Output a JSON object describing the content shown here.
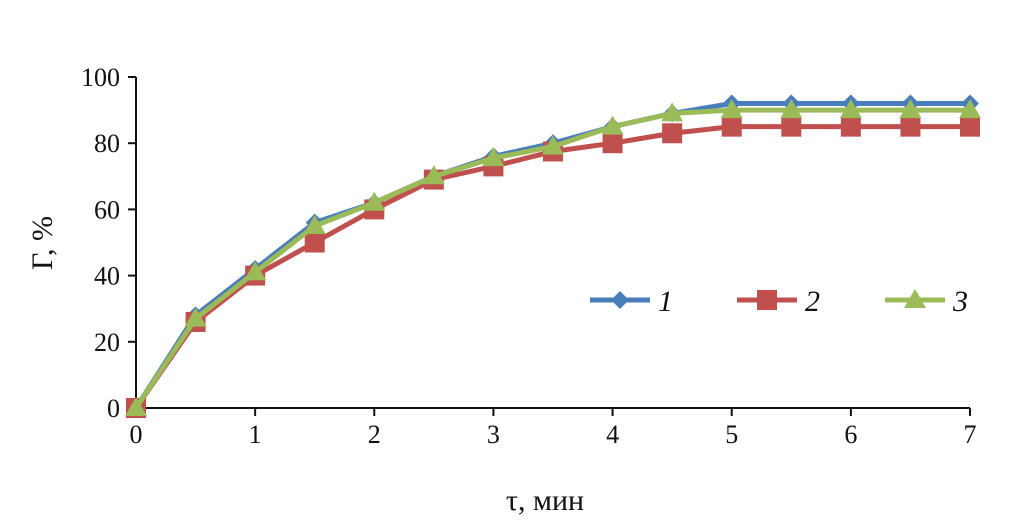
{
  "chart_data": {
    "type": "line",
    "xlabel": "τ, мин",
    "ylabel": "Г, %",
    "xlim": [
      0,
      7
    ],
    "ylim": [
      0,
      100
    ],
    "x_ticks": [
      "0",
      "1",
      "2",
      "3",
      "4",
      "5",
      "6",
      "7"
    ],
    "y_ticks": [
      "0",
      "20",
      "40",
      "60",
      "80",
      "100"
    ],
    "grid": false,
    "legend_position": "right-middle",
    "x": [
      0,
      0.5,
      1,
      1.5,
      2,
      2.5,
      3,
      3.5,
      4,
      4.5,
      5,
      5.5,
      6,
      6.5,
      7
    ],
    "series": [
      {
        "name": "1",
        "color": "#4a7ebb",
        "marker": "diamond",
        "values": [
          0,
          28,
          42,
          56,
          62,
          70,
          76,
          80,
          85,
          89,
          92,
          92,
          92,
          92,
          92
        ]
      },
      {
        "name": "2",
        "color": "#c0504d",
        "marker": "square",
        "values": [
          0,
          26,
          40,
          50,
          60,
          69,
          73,
          77.5,
          80,
          83,
          85,
          85,
          85,
          85,
          85
        ]
      },
      {
        "name": "3",
        "color": "#9bbb59",
        "marker": "triangle",
        "values": [
          0,
          27,
          41,
          55,
          62,
          70,
          75.5,
          79,
          85,
          89,
          90,
          90,
          90,
          90,
          90
        ]
      }
    ]
  }
}
